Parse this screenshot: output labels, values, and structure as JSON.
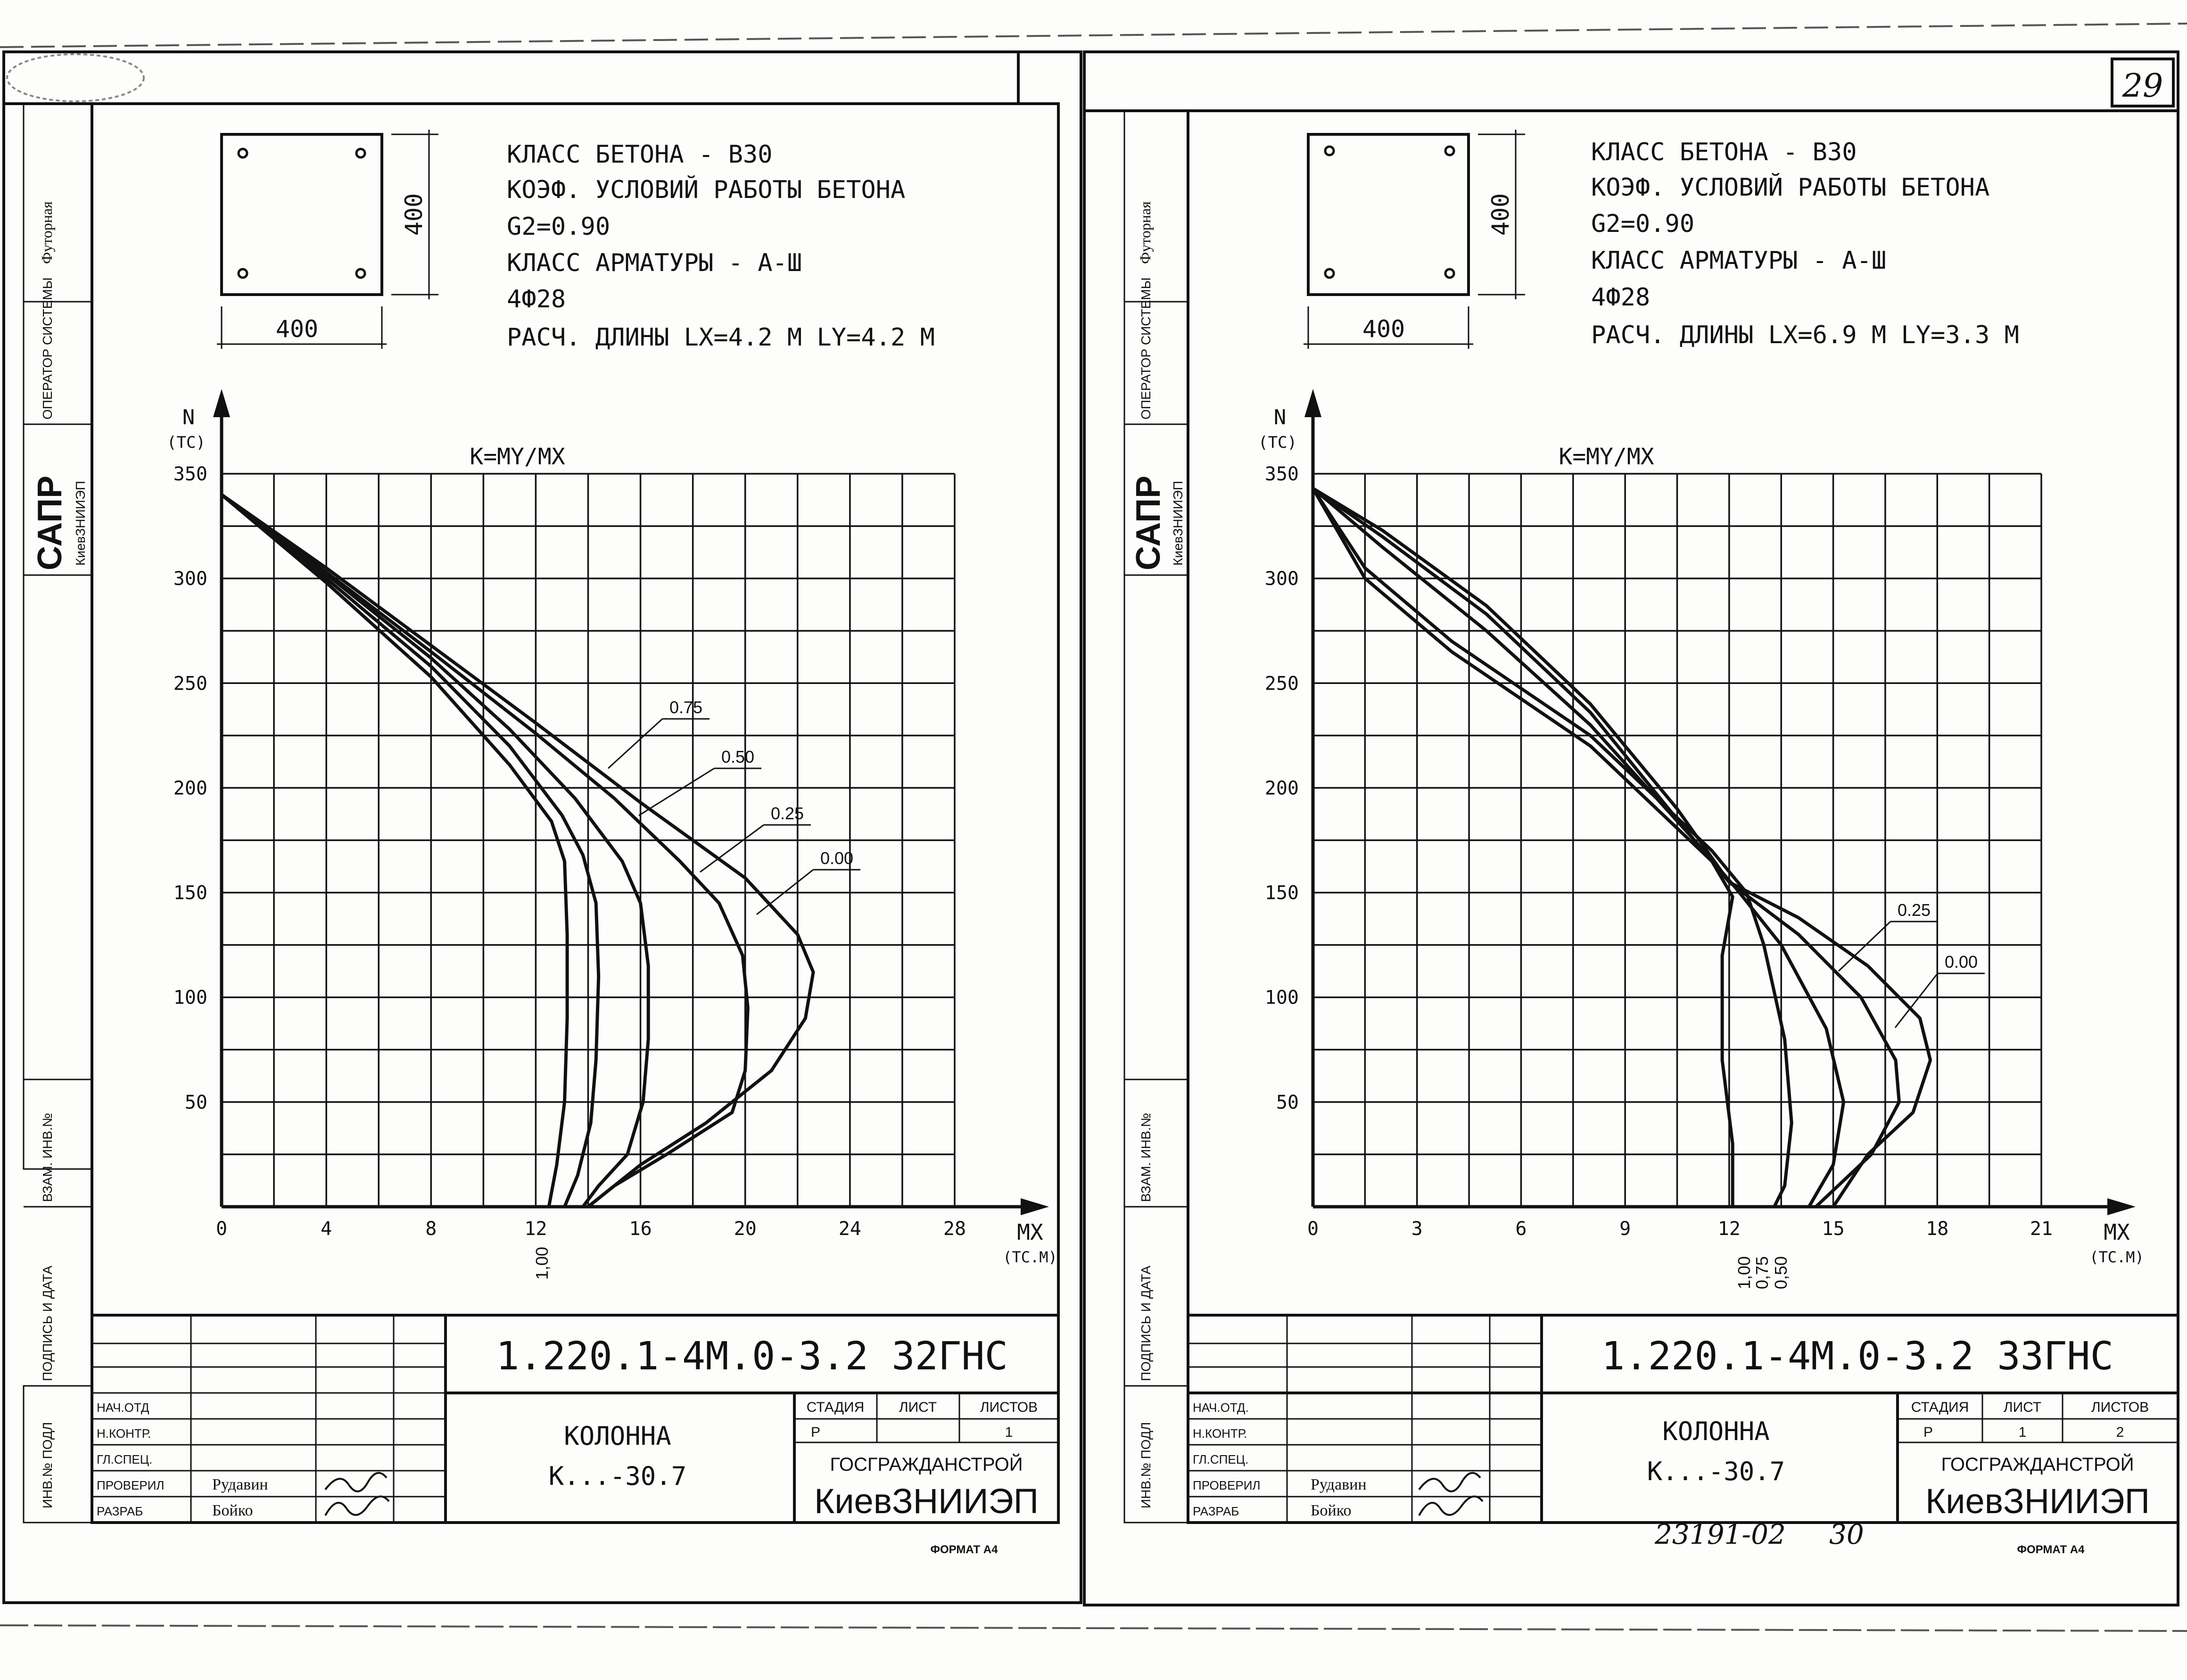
{
  "page_number": "29",
  "handwritten_number": "23191-02",
  "handwritten_page": "30",
  "sheets": [
    {
      "section": {
        "width_label": "400",
        "height_label": "400"
      },
      "specs": [
        "КЛАСС БЕТОНА - В30",
        "КОЭФ. УСЛОВИЙ РАБОТЫ БЕТОНА",
        "G2=0.90",
        "КЛАСС АРМАТУРЫ - А-Ш",
        "4Ф28",
        "РАСЧ. ДЛИНЫ  LX=4.2 M  LY=4.2 M"
      ],
      "side_stamp": {
        "futorna": "Футорная",
        "operator": "ОПЕРАТОР СИСТЕМЫ",
        "sapr": "САПР",
        "kiev": "КиевЗНИИЭП",
        "vzam": "ВЗАМ. ИНВ.№",
        "podp": "ПОДПИСЬ И ДАТА",
        "inv": "ИНВ.№ ПОДЛ"
      },
      "title_block": {
        "code": "1.220.1-4М.0-3.2 32ГНС",
        "name": "КОЛОННА",
        "mark": "К...-30.7",
        "stage_header": "СТАДИЯ",
        "sheet_header": "ЛИСТ",
        "sheets_header": "ЛИСТОВ",
        "stage": "Р",
        "sheet": "",
        "sheets": "1",
        "org1": "ГОСГРАЖДАНСТРОЙ",
        "org2": "КиевЗНИИЭП",
        "roles": [
          "НАЧ.ОТД",
          "Н.КОНТР.",
          "ГЛ.СПЕЦ.",
          "ПРОВЕРИЛ",
          "РАЗРАБ"
        ],
        "names": [
          "",
          "",
          "",
          "Рудавин",
          "Бойко"
        ],
        "format": "ФОРМАТ А4"
      }
    },
    {
      "section": {
        "width_label": "400",
        "height_label": "400"
      },
      "specs": [
        "КЛАСС БЕТОНА - В30",
        "КОЭФ. УСЛОВИЙ РАБОТЫ БЕТОНА",
        "G2=0.90",
        "КЛАСС АРМАТУРЫ - А-Ш",
        "4Ф28",
        "РАСЧ. ДЛИНЫ  LX=6.9 M  LY=3.3 M"
      ],
      "side_stamp": {
        "futorna": "Футорная",
        "operator": "ОПЕРАТОР СИСТЕМЫ",
        "sapr": "САПР",
        "kiev": "КиевЗНИИЭП",
        "vzam": "ВЗАМ. ИНВ.№",
        "podp": "ПОДПИСЬ И ДАТА",
        "inv": "ИНВ.№ ПОДЛ"
      },
      "title_block": {
        "code": "1.220.1-4М.0-3.2 33ГНС",
        "name": "КОЛОННА",
        "mark": "К...-30.7",
        "stage_header": "СТАДИЯ",
        "sheet_header": "ЛИСТ",
        "sheets_header": "ЛИСТОВ",
        "stage": "Р",
        "sheet": "1",
        "sheets": "2",
        "org1": "ГОСГРАЖДАНСТРОЙ",
        "org2": "КиевЗНИИЭП",
        "roles": [
          "НАЧ.ОТД.",
          "Н.КОНТР.",
          "ГЛ.СПЕЦ.",
          "ПРОВЕРИЛ",
          "РАЗРАБ"
        ],
        "names": [
          "",
          "",
          "",
          "Рудавин",
          "Бойко"
        ],
        "format": "ФОРМАТ А4"
      }
    }
  ],
  "chart_data": [
    {
      "type": "line",
      "title": "K=MY/MX",
      "xlabel": "MX",
      "xunit": "(ТС.М)",
      "ylabel": "N",
      "yunit": "(ТС)",
      "xlim": [
        0,
        28
      ],
      "ylim": [
        0,
        350
      ],
      "x_ticks": [
        "0",
        "4",
        "8",
        "12",
        "16",
        "20",
        "24",
        "28"
      ],
      "y_ticks": [
        "50",
        "100",
        "150",
        "200",
        "250",
        "300",
        "350"
      ],
      "grid": true,
      "series": [
        {
          "name": "0.00",
          "points": [
            [
              0,
              340
            ],
            [
              4,
              305
            ],
            [
              8,
              268
            ],
            [
              12,
              231
            ],
            [
              16,
              193
            ],
            [
              20,
              157
            ],
            [
              22,
              130
            ],
            [
              22.6,
              112
            ],
            [
              22.3,
              90
            ],
            [
              21,
              65
            ],
            [
              18.5,
              40
            ],
            [
              16,
              20
            ],
            [
              14,
              0
            ]
          ]
        },
        {
          "name": "0.25",
          "points": [
            [
              0,
              340
            ],
            [
              4,
              303
            ],
            [
              8,
              265
            ],
            [
              12,
              226
            ],
            [
              15,
              195
            ],
            [
              17.5,
              165
            ],
            [
              19,
              145
            ],
            [
              19.9,
              120
            ],
            [
              20.1,
              95
            ],
            [
              20,
              65
            ],
            [
              19.5,
              45
            ],
            [
              17,
              25
            ],
            [
              15,
              10
            ],
            [
              14,
              0
            ]
          ]
        },
        {
          "name": "0.50",
          "points": [
            [
              0,
              340
            ],
            [
              4,
              302
            ],
            [
              8,
              262
            ],
            [
              11,
              228
            ],
            [
              13.5,
              195
            ],
            [
              15.3,
              165
            ],
            [
              16,
              145
            ],
            [
              16.3,
              115
            ],
            [
              16.3,
              80
            ],
            [
              16.1,
              50
            ],
            [
              15.5,
              25
            ],
            [
              14.4,
              10
            ],
            [
              13.8,
              0
            ]
          ]
        },
        {
          "name": "0.75",
          "points": [
            [
              0,
              340
            ],
            [
              4,
              300
            ],
            [
              8,
              258
            ],
            [
              11,
              220
            ],
            [
              13,
              187
            ],
            [
              13.8,
              168
            ],
            [
              14.3,
              145
            ],
            [
              14.4,
              110
            ],
            [
              14.3,
              70
            ],
            [
              14.1,
              40
            ],
            [
              13.6,
              15
            ],
            [
              13.1,
              0
            ]
          ]
        },
        {
          "name": "1.00",
          "points": [
            [
              0,
              340
            ],
            [
              4,
              298
            ],
            [
              8,
              253
            ],
            [
              11,
              211
            ],
            [
              12.6,
              184
            ],
            [
              13.1,
              165
            ],
            [
              13.2,
              130
            ],
            [
              13.2,
              90
            ],
            [
              13.1,
              50
            ],
            [
              12.8,
              20
            ],
            [
              12.5,
              0
            ]
          ]
        }
      ],
      "labels": [
        "0.75",
        "0.50",
        "0.25",
        "0.00"
      ],
      "bottom_labels": [
        "1,00"
      ]
    },
    {
      "type": "line",
      "title": "K=MY/MX",
      "xlabel": "MX",
      "xunit": "(ТС.М)",
      "ylabel": "N",
      "yunit": "(ТС)",
      "xlim": [
        0,
        21
      ],
      "ylim": [
        0,
        350
      ],
      "x_ticks": [
        "0",
        "3",
        "6",
        "9",
        "12",
        "15",
        "18",
        "21"
      ],
      "y_ticks": [
        "50",
        "100",
        "150",
        "200",
        "250",
        "300",
        "350"
      ],
      "grid": true,
      "series": [
        {
          "name": "0.00",
          "points": [
            [
              0,
              343
            ],
            [
              2,
              323
            ],
            [
              5,
              287
            ],
            [
              8,
              240
            ],
            [
              10.5,
              190
            ],
            [
              12,
              155
            ],
            [
              14,
              138
            ],
            [
              16,
              115
            ],
            [
              17.5,
              90
            ],
            [
              17.8,
              70
            ],
            [
              17.3,
              45
            ],
            [
              16,
              25
            ],
            [
              15,
              0
            ]
          ]
        },
        {
          "name": "0.25",
          "points": [
            [
              0,
              343
            ],
            [
              2,
              320
            ],
            [
              5,
              283
            ],
            [
              8,
              236
            ],
            [
              10.5,
              185
            ],
            [
              12,
              155
            ],
            [
              14,
              130
            ],
            [
              15.8,
              100
            ],
            [
              16.8,
              70
            ],
            [
              16.9,
              50
            ],
            [
              16.1,
              25
            ],
            [
              14.5,
              0
            ]
          ]
        },
        {
          "name": "0.50",
          "points": [
            [
              0,
              343
            ],
            [
              2,
              315
            ],
            [
              5,
              275
            ],
            [
              8,
              230
            ],
            [
              11,
              175
            ],
            [
              12.2,
              152
            ],
            [
              13.5,
              125
            ],
            [
              14.8,
              85
            ],
            [
              15.3,
              50
            ],
            [
              15,
              20
            ],
            [
              14.3,
              0
            ]
          ]
        },
        {
          "name": "0.75",
          "points": [
            [
              0,
              343
            ],
            [
              1.5,
              305
            ],
            [
              4,
              270
            ],
            [
              8,
              225
            ],
            [
              11.5,
              170
            ],
            [
              12.5,
              150
            ],
            [
              13,
              125
            ],
            [
              13.6,
              80
            ],
            [
              13.8,
              40
            ],
            [
              13.6,
              10
            ],
            [
              13.3,
              0
            ]
          ]
        },
        {
          "name": "1.00",
          "points": [
            [
              0,
              343
            ],
            [
              1.5,
              300
            ],
            [
              4,
              265
            ],
            [
              8,
              220
            ],
            [
              11.5,
              165
            ],
            [
              12.1,
              148
            ],
            [
              11.8,
              120
            ],
            [
              11.8,
              70
            ],
            [
              12.1,
              30
            ],
            [
              12.1,
              0
            ]
          ]
        }
      ],
      "labels": [
        "0.25",
        "0.00"
      ],
      "bottom_labels": [
        "1,00",
        "0,75",
        "0,50"
      ]
    }
  ]
}
